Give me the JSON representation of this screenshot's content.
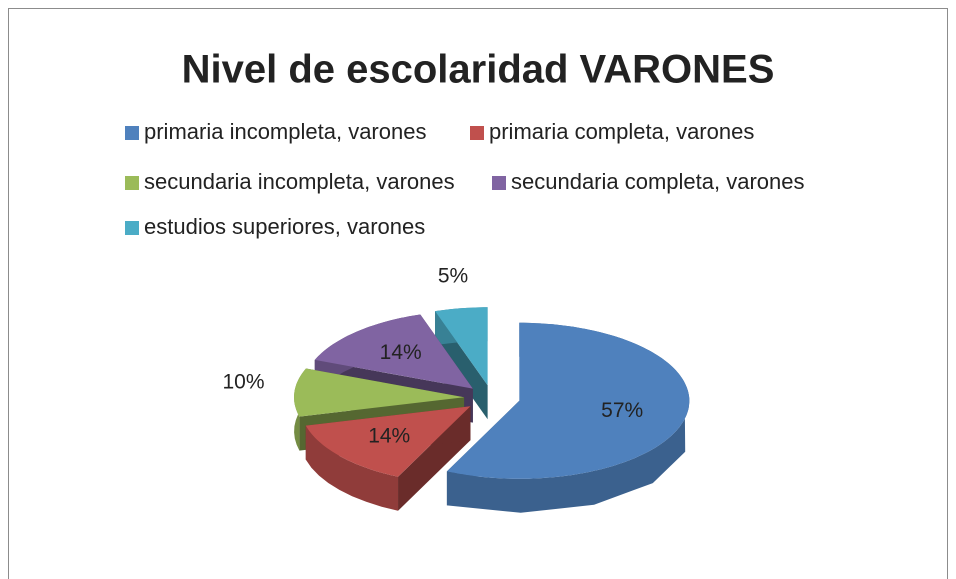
{
  "chart_data": {
    "type": "pie3d",
    "title": "Nivel de escolaridad VARONES",
    "categories": [
      "primaria incompleta, varones",
      "primaria completa, varones",
      "secundaria incompleta, varones",
      "secundaria completa, varones",
      "estudios superiores, varones"
    ],
    "values": [
      57,
      14,
      10,
      14,
      5
    ],
    "value_labels": [
      "57%",
      "14%",
      "10%",
      "14%",
      "5%"
    ],
    "colors": [
      "#4f81bd",
      "#c0504d",
      "#9bbb59",
      "#8064a2",
      "#4bacc6"
    ],
    "legend": "top",
    "exploded": true
  }
}
